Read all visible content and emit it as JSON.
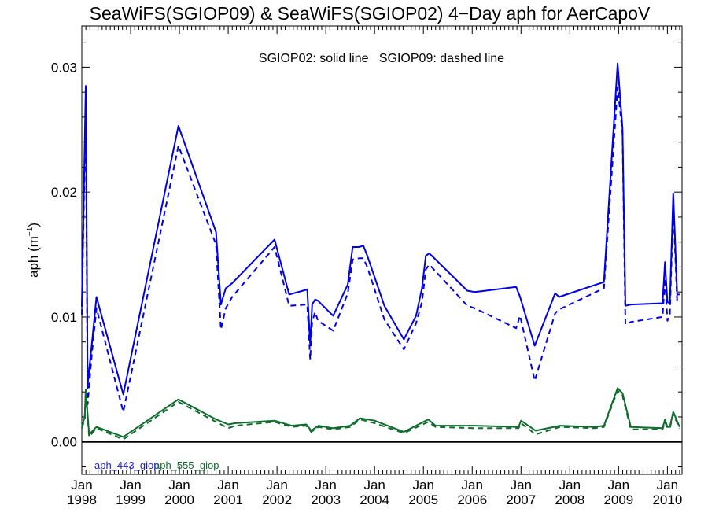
{
  "chart_data": {
    "type": "line",
    "title": "SeaWiFS(SGIOP09) & SeaWiFS(SGIOP02) 4−Day aph for AerCapoV",
    "annotation": "SGIOP02: solid line   SGIOP09: dashed line",
    "xlabel": "",
    "ylabel": "aph (m",
    "ylabel_sup": "−1",
    "ylabel_end": ")",
    "xlim": [
      1998.0,
      2010.3
    ],
    "ylim": [
      -0.0026,
      0.0333
    ],
    "x_ticks": [
      {
        "x": 1998,
        "month": "Jan",
        "year": "1998"
      },
      {
        "x": 1999,
        "month": "Jan",
        "year": "1999"
      },
      {
        "x": 2000,
        "month": "Jan",
        "year": "2000"
      },
      {
        "x": 2001,
        "month": "Jan",
        "year": "2001"
      },
      {
        "x": 2002,
        "month": "Jan",
        "year": "2002"
      },
      {
        "x": 2003,
        "month": "Jan",
        "year": "2003"
      },
      {
        "x": 2004,
        "month": "Jan",
        "year": "2004"
      },
      {
        "x": 2005,
        "month": "Jan",
        "year": "2005"
      },
      {
        "x": 2006,
        "month": "Jan",
        "year": "2006"
      },
      {
        "x": 2007,
        "month": "Jan",
        "year": "2007"
      },
      {
        "x": 2008,
        "month": "Jan",
        "year": "2008"
      },
      {
        "x": 2009,
        "month": "Jan",
        "year": "2009"
      },
      {
        "x": 2010,
        "month": "Jan",
        "year": "2010"
      }
    ],
    "y_ticks": [
      {
        "value": 0.0,
        "label": "0.00"
      },
      {
        "value": 0.01,
        "label": "0.01"
      },
      {
        "value": 0.02,
        "label": "0.02"
      },
      {
        "value": 0.03,
        "label": "0.03"
      }
    ],
    "zero_line": true,
    "grid": false,
    "legend": [
      {
        "label": "aph_443_giop",
        "color": "#1a1ad6"
      },
      {
        "label": "aph_555_giop",
        "color": "#0f6b2e"
      }
    ],
    "series": [
      {
        "name": "aph_443_giop",
        "model": "SGIOP02",
        "dash": false,
        "color": "#0000e6",
        "x": [
          1998.0,
          1998.08,
          1998.12,
          1998.2,
          1998.3,
          1998.85,
          1999.98,
          2000.75,
          2000.85,
          2000.95,
          2001.08,
          2001.95,
          2002.25,
          2002.62,
          2002.68,
          2002.72,
          2002.78,
          2002.84,
          2003.15,
          2003.45,
          2003.55,
          2003.68,
          2003.77,
          2003.85,
          2004.2,
          2004.6,
          2004.85,
          2004.97,
          2005.05,
          2005.12,
          2005.9,
          2006.05,
          2006.9,
          2006.98,
          2007.28,
          2007.7,
          2007.78,
          2008.7,
          2008.98,
          2009.08,
          2009.14,
          2009.25,
          2009.9,
          2009.95,
          2010.0,
          2010.05,
          2010.12,
          2010.2,
          2010.25
        ],
        "y": [
          0.0108,
          0.0285,
          0.0046,
          0.0076,
          0.0116,
          0.0038,
          0.0253,
          0.0168,
          0.011,
          0.0123,
          0.0127,
          0.0162,
          0.0118,
          0.0122,
          0.0078,
          0.011,
          0.0114,
          0.0113,
          0.0101,
          0.0126,
          0.0156,
          0.0156,
          0.0157,
          0.0149,
          0.0109,
          0.0082,
          0.0101,
          0.0123,
          0.0149,
          0.0151,
          0.0121,
          0.012,
          0.0124,
          0.0116,
          0.0077,
          0.0119,
          0.0116,
          0.0128,
          0.0303,
          0.0251,
          0.0109,
          0.011,
          0.0111,
          0.0144,
          0.0112,
          0.0111,
          0.0199,
          0.0118,
          0.0118
        ]
      },
      {
        "name": "aph_443_giop",
        "model": "SGIOP09",
        "dash": true,
        "color": "#0000e6",
        "x": [
          1998.0,
          1998.08,
          1998.12,
          1998.2,
          1998.3,
          1998.85,
          1999.98,
          2000.75,
          2000.85,
          2000.95,
          2001.08,
          2001.95,
          2002.25,
          2002.62,
          2002.68,
          2002.72,
          2002.78,
          2002.84,
          2003.15,
          2003.45,
          2003.55,
          2003.68,
          2003.77,
          2003.85,
          2004.2,
          2004.6,
          2004.85,
          2004.97,
          2005.05,
          2005.12,
          2005.9,
          2006.05,
          2006.9,
          2006.98,
          2007.28,
          2007.7,
          2007.78,
          2008.7,
          2008.98,
          2009.08,
          2009.14,
          2009.25,
          2009.9,
          2009.95,
          2010.0,
          2010.05,
          2010.12,
          2010.2,
          2010.25
        ],
        "y": [
          0.0102,
          0.0271,
          0.003,
          0.0068,
          0.0107,
          0.0024,
          0.0237,
          0.0158,
          0.009,
          0.0107,
          0.0116,
          0.0156,
          0.0109,
          0.011,
          0.0066,
          0.0096,
          0.0104,
          0.0097,
          0.0089,
          0.0119,
          0.0146,
          0.0147,
          0.0147,
          0.014,
          0.0098,
          0.0074,
          0.0095,
          0.0112,
          0.0138,
          0.0142,
          0.0109,
          0.0107,
          0.0091,
          0.0101,
          0.0049,
          0.0103,
          0.0106,
          0.0123,
          0.0284,
          0.0247,
          0.0094,
          0.0096,
          0.01,
          0.0131,
          0.0097,
          0.0102,
          0.0189,
          0.0112,
          0.0112
        ]
      },
      {
        "name": "aph_555_giop",
        "model": "SGIOP02",
        "dash": false,
        "color": "#0f6b2e",
        "x": [
          1998.0,
          1998.06,
          1998.08,
          1998.15,
          1998.3,
          1998.85,
          1999.98,
          2000.75,
          2001.0,
          2001.15,
          2001.95,
          2002.3,
          2002.6,
          2002.7,
          2002.85,
          2003.15,
          2003.5,
          2003.7,
          2004.0,
          2004.6,
          2005.1,
          2005.25,
          2006.05,
          2006.95,
          2007.0,
          2007.3,
          2007.8,
          2008.5,
          2008.7,
          2008.98,
          2009.08,
          2009.25,
          2009.9,
          2009.95,
          2010.0,
          2010.05,
          2010.12,
          2010.25
        ],
        "y": [
          0.0012,
          0.002,
          0.0042,
          0.0006,
          0.0012,
          0.0004,
          0.0034,
          0.0018,
          0.0014,
          0.0015,
          0.0017,
          0.0013,
          0.0014,
          0.0009,
          0.0013,
          0.0011,
          0.0013,
          0.0019,
          0.0017,
          0.0008,
          0.0018,
          0.0013,
          0.0013,
          0.0012,
          0.0017,
          0.0009,
          0.0013,
          0.0012,
          0.0013,
          0.0043,
          0.0039,
          0.0012,
          0.0011,
          0.0018,
          0.0012,
          0.0012,
          0.0024,
          0.0012
        ]
      },
      {
        "name": "aph_555_giop",
        "model": "SGIOP09",
        "dash": true,
        "color": "#0f6b2e",
        "x": [
          1998.0,
          1998.06,
          1998.08,
          1998.15,
          1998.3,
          1998.85,
          1999.98,
          2000.75,
          2001.0,
          2001.15,
          2001.95,
          2002.3,
          2002.6,
          2002.7,
          2002.85,
          2003.15,
          2003.5,
          2003.7,
          2004.0,
          2004.6,
          2005.1,
          2005.25,
          2006.05,
          2006.95,
          2007.0,
          2007.3,
          2007.8,
          2008.5,
          2008.7,
          2008.98,
          2009.08,
          2009.25,
          2009.9,
          2009.95,
          2010.0,
          2010.05,
          2010.12,
          2010.25
        ],
        "y": [
          0.0011,
          0.0018,
          0.004,
          0.0004,
          0.0011,
          0.0002,
          0.0032,
          0.0016,
          0.0011,
          0.0013,
          0.0016,
          0.0012,
          0.0013,
          0.0008,
          0.0012,
          0.001,
          0.0012,
          0.0018,
          0.0015,
          0.0007,
          0.0016,
          0.0012,
          0.0011,
          0.0011,
          0.0015,
          0.0006,
          0.0012,
          0.0011,
          0.0012,
          0.0041,
          0.0037,
          0.001,
          0.001,
          0.0016,
          0.0011,
          0.0011,
          0.0022,
          0.0011
        ]
      }
    ]
  }
}
